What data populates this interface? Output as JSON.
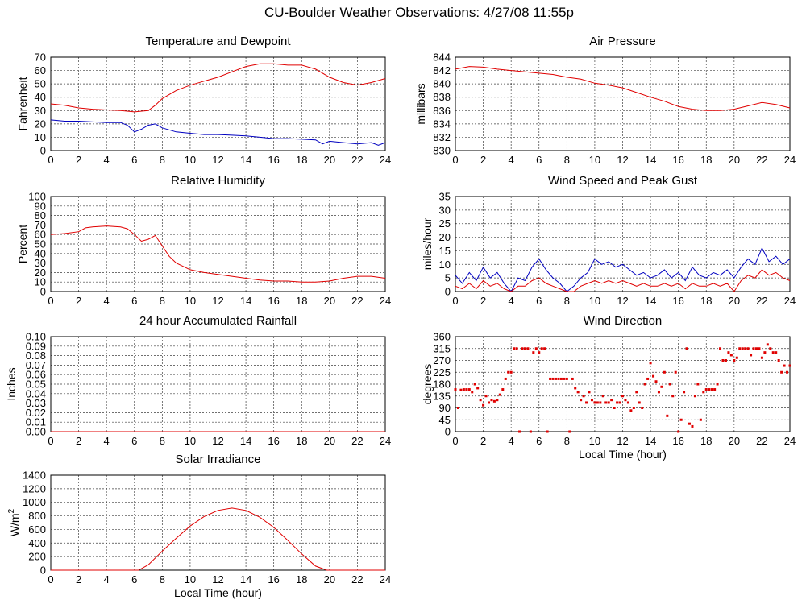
{
  "page_title": "CU-Boulder Weather Observations: 4/27/08 11:55p",
  "colors": {
    "red": "#e00000",
    "blue": "#0000c0",
    "grid": "#000000"
  },
  "chart_data": [
    {
      "id": "temp",
      "type": "line",
      "title": "Temperature and Dewpoint",
      "ylabel": "Fahrenheit",
      "xlabel": "",
      "xlim": [
        0,
        24
      ],
      "xticks": [
        "0",
        "2",
        "4",
        "6",
        "8",
        "10",
        "12",
        "14",
        "16",
        "18",
        "20",
        "22",
        "24"
      ],
      "ylim": [
        0,
        70
      ],
      "yticks": [
        "0",
        "10",
        "20",
        "30",
        "40",
        "50",
        "60",
        "70"
      ],
      "grid": true,
      "series": [
        {
          "color": "#e00000",
          "x": [
            0,
            1,
            2,
            3,
            4,
            5,
            6,
            7,
            7.5,
            8,
            9,
            10,
            11,
            12,
            13,
            14,
            15,
            16,
            17,
            18,
            19,
            20,
            21,
            22,
            23,
            24
          ],
          "y": [
            35,
            34,
            32,
            31,
            30.5,
            30,
            29,
            30,
            34,
            39,
            45,
            49,
            52,
            55,
            59,
            63,
            65,
            65,
            64,
            64,
            61,
            55,
            51,
            49,
            51,
            54
          ]
        },
        {
          "color": "#0000c0",
          "x": [
            0,
            1,
            2,
            3,
            4,
            5,
            5.5,
            6,
            6.5,
            7,
            7.5,
            8,
            9,
            10,
            11,
            12,
            13,
            14,
            15,
            16,
            17,
            18,
            19,
            19.5,
            20,
            21,
            22,
            23,
            23.5,
            24
          ],
          "y": [
            23,
            22,
            22,
            21.5,
            21,
            21,
            19,
            14,
            16,
            19,
            20,
            17,
            14,
            13,
            12,
            12,
            11.5,
            11,
            10,
            9,
            9,
            8.5,
            8,
            5,
            7,
            6,
            5,
            6,
            4,
            6
          ]
        }
      ]
    },
    {
      "id": "pressure",
      "type": "line",
      "title": "Air Pressure",
      "ylabel": "millibars",
      "xlabel": "",
      "xlim": [
        0,
        24
      ],
      "xticks": [
        "0",
        "2",
        "4",
        "6",
        "8",
        "10",
        "12",
        "14",
        "16",
        "18",
        "20",
        "22",
        "24"
      ],
      "ylim": [
        830,
        844
      ],
      "yticks": [
        "830",
        "832",
        "834",
        "836",
        "838",
        "840",
        "842",
        "844"
      ],
      "grid": true,
      "series": [
        {
          "color": "#e00000",
          "x": [
            0,
            1,
            2,
            3,
            4,
            5,
            6,
            7,
            8,
            9,
            10,
            11,
            12,
            13,
            14,
            15,
            16,
            17,
            18,
            19,
            20,
            21,
            22,
            23,
            24
          ],
          "y": [
            842.2,
            842.6,
            842.5,
            842.2,
            842,
            841.8,
            841.6,
            841.4,
            841,
            840.7,
            840.1,
            839.8,
            839.4,
            838.7,
            838,
            837.4,
            836.6,
            836.2,
            836,
            836,
            836.2,
            836.7,
            837.2,
            836.9,
            836.4
          ]
        }
      ]
    },
    {
      "id": "humidity",
      "type": "line",
      "title": "Relative Humidity",
      "ylabel": "Percent",
      "xlabel": "",
      "xlim": [
        0,
        24
      ],
      "xticks": [
        "0",
        "2",
        "4",
        "6",
        "8",
        "10",
        "12",
        "14",
        "16",
        "18",
        "20",
        "22",
        "24"
      ],
      "ylim": [
        0,
        100
      ],
      "yticks": [
        "0",
        "10",
        "20",
        "30",
        "40",
        "50",
        "60",
        "70",
        "80",
        "90",
        "100"
      ],
      "grid": true,
      "series": [
        {
          "color": "#e00000",
          "x": [
            0,
            1,
            2,
            2.5,
            3,
            4,
            5,
            5.5,
            6,
            6.5,
            7,
            7.5,
            8,
            8.5,
            9,
            10,
            11,
            12,
            13,
            14,
            15,
            16,
            17,
            18,
            19,
            20,
            21,
            22,
            23,
            24
          ],
          "y": [
            60,
            61,
            63,
            67,
            68,
            69,
            68,
            66,
            60,
            53,
            55,
            59,
            48,
            37,
            30,
            23,
            20,
            18,
            16,
            14,
            12,
            11,
            11,
            10,
            10,
            11,
            14,
            16,
            16,
            14
          ]
        }
      ]
    },
    {
      "id": "wind",
      "type": "line",
      "title": "Wind Speed and Peak Gust",
      "ylabel": "miles/hour",
      "xlabel": "",
      "xlim": [
        0,
        24
      ],
      "xticks": [
        "0",
        "2",
        "4",
        "6",
        "8",
        "10",
        "12",
        "14",
        "16",
        "18",
        "20",
        "22",
        "24"
      ],
      "ylim": [
        0,
        35
      ],
      "yticks": [
        "0",
        "5",
        "10",
        "15",
        "20",
        "25",
        "30",
        "35"
      ],
      "grid": true,
      "series": [
        {
          "color": "#0000c0",
          "x": [
            0,
            0.5,
            1,
            1.5,
            2,
            2.5,
            3,
            3.5,
            4,
            4.5,
            5,
            5.5,
            6,
            6.5,
            7,
            7.5,
            8,
            8.5,
            9,
            9.5,
            10,
            10.5,
            11,
            11.5,
            12,
            12.5,
            13,
            13.5,
            14,
            14.5,
            15,
            15.5,
            16,
            16.5,
            17,
            17.5,
            18,
            18.5,
            19,
            19.5,
            20,
            20.5,
            21,
            21.5,
            22,
            22.5,
            23,
            23.5,
            24
          ],
          "y": [
            6,
            3,
            7,
            4,
            9,
            5,
            7,
            3,
            0,
            5,
            4,
            9,
            12,
            8,
            5,
            3,
            0,
            2,
            5,
            7,
            12,
            10,
            11,
            9,
            10,
            8,
            6,
            7,
            5,
            6,
            8,
            5,
            7,
            4,
            9,
            6,
            5,
            7,
            6,
            8,
            5,
            9,
            12,
            10,
            16,
            11,
            13,
            10,
            12
          ]
        },
        {
          "color": "#e00000",
          "x": [
            0,
            0.5,
            1,
            1.5,
            2,
            2.5,
            3,
            3.5,
            4,
            4.5,
            5,
            5.5,
            6,
            6.5,
            7,
            7.5,
            8,
            8.5,
            9,
            9.5,
            10,
            10.5,
            11,
            11.5,
            12,
            12.5,
            13,
            13.5,
            14,
            14.5,
            15,
            15.5,
            16,
            16.5,
            17,
            17.5,
            18,
            18.5,
            19,
            19.5,
            20,
            20.5,
            21,
            21.5,
            22,
            22.5,
            23,
            23.5,
            24
          ],
          "y": [
            2,
            1,
            3,
            1,
            4,
            2,
            3,
            1,
            0,
            2,
            2,
            4,
            5,
            3,
            2,
            1,
            0,
            0,
            2,
            3,
            4,
            3,
            4,
            3,
            4,
            3,
            2,
            3,
            2,
            2,
            3,
            2,
            3,
            1,
            3,
            2,
            2,
            3,
            2,
            3,
            0,
            4,
            6,
            5,
            8,
            6,
            7,
            5,
            4
          ]
        }
      ]
    },
    {
      "id": "rain",
      "type": "line",
      "title": "24 hour Accumulated Rainfall",
      "ylabel": "Inches",
      "xlabel": "",
      "xlim": [
        0,
        24
      ],
      "xticks": [
        "0",
        "2",
        "4",
        "6",
        "8",
        "10",
        "12",
        "14",
        "16",
        "18",
        "20",
        "22",
        "24"
      ],
      "ylim": [
        0,
        0.1
      ],
      "yticks": [
        "0.00",
        "0.01",
        "0.02",
        "0.03",
        "0.04",
        "0.05",
        "0.06",
        "0.07",
        "0.08",
        "0.09",
        "0.10"
      ],
      "grid": true,
      "series": [
        {
          "color": "#e00000",
          "x": [
            0,
            24
          ],
          "y": [
            0,
            0
          ]
        }
      ]
    },
    {
      "id": "direction",
      "type": "scatter",
      "title": "Wind Direction",
      "ylabel": "degrees",
      "xlabel": "Local Time (hour)",
      "xlim": [
        0,
        24
      ],
      "xticks": [
        "0",
        "2",
        "4",
        "6",
        "8",
        "10",
        "12",
        "14",
        "16",
        "18",
        "20",
        "22",
        "24"
      ],
      "ylim": [
        0,
        360
      ],
      "yticks": [
        "0",
        "45",
        "90",
        "135",
        "180",
        "225",
        "270",
        "315",
        "360"
      ],
      "grid": true,
      "series": [
        {
          "color": "#e00000",
          "x": [
            0,
            0.2,
            0.4,
            0.6,
            0.8,
            1,
            1.2,
            1.4,
            1.6,
            1.8,
            2,
            2.2,
            2.4,
            2.6,
            2.8,
            3,
            3.2,
            3.4,
            3.6,
            3.8,
            4,
            4.2,
            4.4,
            4.6,
            4.8,
            5,
            5.2,
            5.4,
            5.6,
            5.8,
            6,
            6.2,
            6.4,
            6.6,
            6.8,
            7,
            7.2,
            7.4,
            7.6,
            7.8,
            8,
            8.2,
            8.4,
            8.6,
            8.8,
            9,
            9.2,
            9.4,
            9.6,
            9.8,
            10,
            10.2,
            10.4,
            10.6,
            10.8,
            11,
            11.2,
            11.4,
            11.6,
            11.8,
            12,
            12.2,
            12.4,
            12.6,
            12.8,
            13,
            13.2,
            13.4,
            13.6,
            13.8,
            14,
            14.2,
            14.4,
            14.6,
            14.8,
            15,
            15.2,
            15.4,
            15.6,
            15.8,
            16,
            16.2,
            16.4,
            16.6,
            16.8,
            17,
            17.2,
            17.4,
            17.6,
            17.8,
            18,
            18.2,
            18.4,
            18.6,
            18.8,
            19,
            19.2,
            19.4,
            19.6,
            19.8,
            20,
            20.2,
            20.4,
            20.6,
            20.8,
            21,
            21.2,
            21.4,
            21.6,
            21.8,
            22,
            22.2,
            22.4,
            22.6,
            22.8,
            23,
            23.2,
            23.4,
            23.6,
            23.8,
            24
          ],
          "y": [
            160,
            90,
            158,
            160,
            160,
            160,
            150,
            180,
            165,
            120,
            100,
            135,
            110,
            120,
            115,
            120,
            140,
            160,
            200,
            225,
            225,
            315,
            315,
            0,
            315,
            315,
            315,
            0,
            300,
            315,
            300,
            315,
            315,
            0,
            200,
            200,
            200,
            200,
            200,
            200,
            200,
            0,
            200,
            165,
            150,
            120,
            135,
            110,
            150,
            120,
            110,
            110,
            110,
            135,
            110,
            110,
            120,
            90,
            110,
            110,
            135,
            120,
            110,
            80,
            90,
            150,
            110,
            90,
            180,
            200,
            260,
            210,
            190,
            150,
            170,
            225,
            60,
            180,
            135,
            225,
            0,
            45,
            150,
            315,
            30,
            20,
            135,
            180,
            45,
            150,
            160,
            160,
            160,
            160,
            180,
            315,
            270,
            270,
            300,
            290,
            270,
            280,
            315,
            315,
            315,
            315,
            290,
            315,
            315,
            315,
            280,
            300,
            330,
            315,
            300,
            300,
            270,
            225,
            250,
            225,
            250
          ]
        }
      ]
    },
    {
      "id": "solar",
      "type": "line",
      "title": "Solar Irradiance",
      "ylabel": "W/m",
      "ylabel_sup": "2",
      "xlabel": "Local Time (hour)",
      "xlim": [
        0,
        24
      ],
      "xticks": [
        "0",
        "2",
        "4",
        "6",
        "8",
        "10",
        "12",
        "14",
        "16",
        "18",
        "20",
        "22",
        "24"
      ],
      "ylim": [
        0,
        1400
      ],
      "yticks": [
        "0",
        "200",
        "400",
        "600",
        "800",
        "1000",
        "1200",
        "1400"
      ],
      "grid": true,
      "series": [
        {
          "color": "#e00000",
          "x": [
            0,
            6,
            6.3,
            7,
            8,
            9,
            10,
            11,
            12,
            13,
            14,
            15,
            16,
            17,
            18,
            19,
            19.8,
            20,
            24
          ],
          "y": [
            0,
            0,
            0,
            80,
            280,
            470,
            650,
            790,
            880,
            915,
            880,
            780,
            630,
            440,
            240,
            60,
            0,
            0,
            0
          ]
        }
      ]
    }
  ]
}
